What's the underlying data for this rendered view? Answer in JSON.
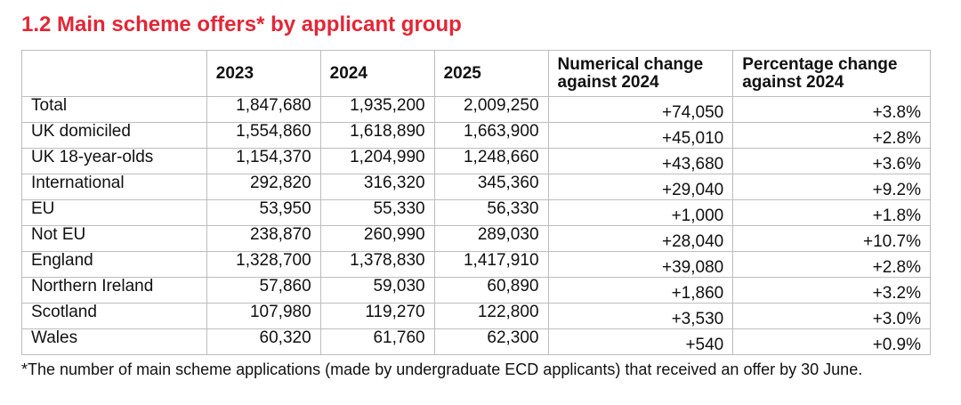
{
  "title": "1.2 Main scheme offers* by applicant group",
  "table": {
    "headers": [
      "",
      "2023",
      "2024",
      "2025",
      "Numerical change against 2024",
      "Percentage change against 2024"
    ],
    "rows": [
      [
        "Total",
        "1,847,680",
        "1,935,200",
        "2,009,250",
        "+74,050",
        "+3.8%"
      ],
      [
        "UK domiciled",
        "1,554,860",
        "1,618,890",
        "1,663,900",
        "+45,010",
        "+2.8%"
      ],
      [
        "UK 18-year-olds",
        "1,154,370",
        "1,204,990",
        "1,248,660",
        "+43,680",
        "+3.6%"
      ],
      [
        "International",
        "292,820",
        "316,320",
        "345,360",
        "+29,040",
        "+9.2%"
      ],
      [
        "EU",
        "53,950",
        "55,330",
        "56,330",
        "+1,000",
        "+1.8%"
      ],
      [
        "Not EU",
        "238,870",
        "260,990",
        "289,030",
        "+28,040",
        "+10.7%"
      ],
      [
        "England",
        "1,328,700",
        "1,378,830",
        "1,417,910",
        "+39,080",
        "+2.8%"
      ],
      [
        "Northern Ireland",
        "57,860",
        "59,030",
        "60,890",
        "+1,860",
        "+3.2%"
      ],
      [
        "Scotland",
        "107,980",
        "119,270",
        "122,800",
        "+3,530",
        "+3.0%"
      ],
      [
        "Wales",
        "60,320",
        "61,760",
        "62,300",
        "+540",
        "+0.9%"
      ]
    ]
  },
  "footnote": "*The number of main scheme applications (made by undergraduate ECD applicants) that received an offer by 30 June.",
  "colors": {
    "title": "#e32636",
    "border": "#bdbdbd"
  }
}
